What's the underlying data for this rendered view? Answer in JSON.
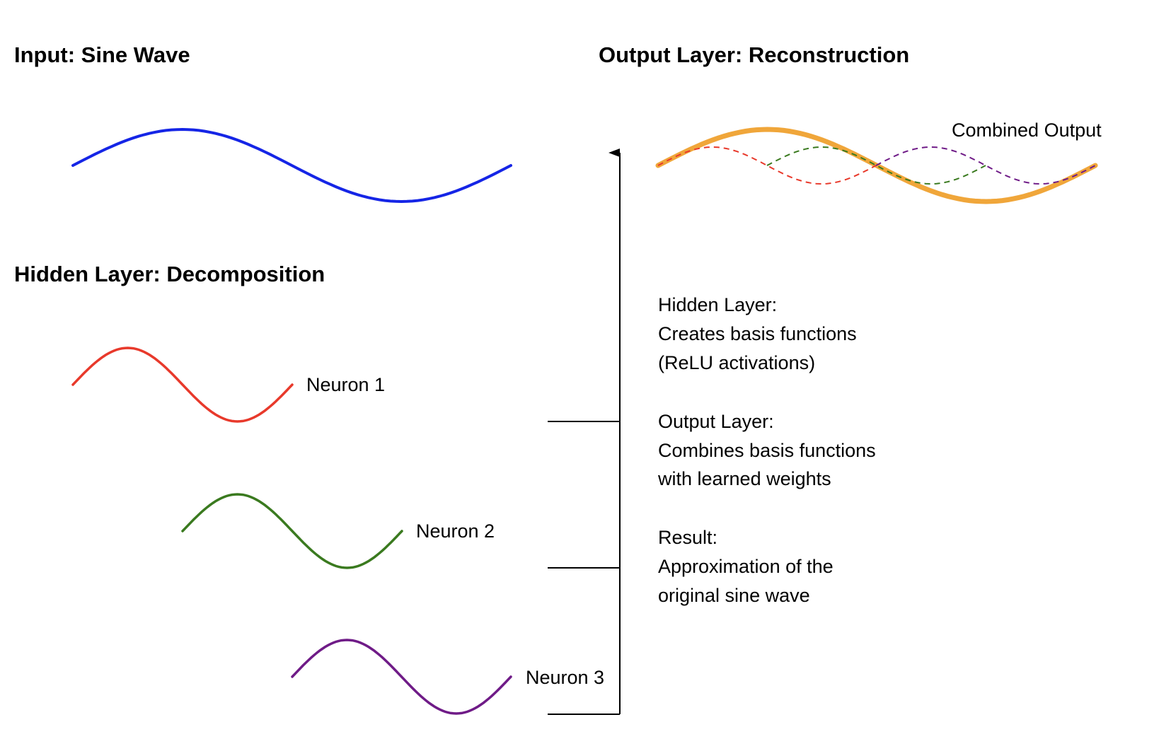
{
  "headings": {
    "input": "Input: Sine Wave",
    "hidden": "Hidden Layer: Decomposition",
    "output": "Output Layer: Reconstruction"
  },
  "neurons": [
    {
      "label": "Neuron 1",
      "color": "#e8392b"
    },
    {
      "label": "Neuron 2",
      "color": "#3a7a1f"
    },
    {
      "label": "Neuron 3",
      "color": "#6f1b87"
    }
  ],
  "input_wave": {
    "color": "#1525e6"
  },
  "output": {
    "label": "Combined Output",
    "combined_color": "#f0a63a",
    "component_style": "dashed"
  },
  "explanation": {
    "hidden": [
      "Hidden Layer:",
      "Creates basis functions",
      "(ReLU activations)"
    ],
    "output": [
      "Output Layer:",
      "Combines basis functions",
      "with learned weights"
    ],
    "result": [
      "Result:",
      "Approximation of the",
      "original sine wave"
    ]
  },
  "connector": {
    "color": "#000000"
  }
}
